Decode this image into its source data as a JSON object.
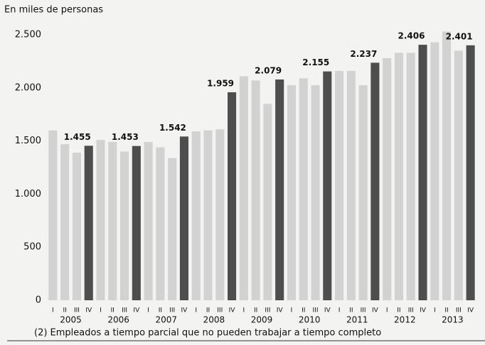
{
  "chart_data": {
    "type": "bar",
    "subtitle": "En miles de personas",
    "footnote": "(2) Empleados a tiempo parcial que no pueden trabajar a tiempo completo",
    "categories": [
      "I",
      "II",
      "III",
      "IV",
      "I",
      "II",
      "III",
      "IV",
      "I",
      "II",
      "III",
      "IV",
      "I",
      "II",
      "III",
      "IV",
      "I",
      "II",
      "III",
      "IV",
      "I",
      "II",
      "III",
      "IV",
      "I",
      "II",
      "III",
      "IV",
      "I",
      "II",
      "III",
      "IV",
      "I",
      "II",
      "III",
      "IV"
    ],
    "years": [
      "2005",
      "2006",
      "2007",
      "2008",
      "2009",
      "2010",
      "2011",
      "2012",
      "2013"
    ],
    "values": [
      1600,
      1470,
      1390,
      1455,
      1510,
      1490,
      1400,
      1453,
      1490,
      1440,
      1340,
      1542,
      1590,
      1600,
      1610,
      1959,
      2110,
      2070,
      1850,
      2079,
      2025,
      2090,
      2025,
      2155,
      2160,
      2160,
      2025,
      2237,
      2280,
      2330,
      2330,
      2406,
      2430,
      2530,
      2350,
      2401
    ],
    "value_labels": [
      null,
      null,
      null,
      "1.455",
      null,
      null,
      null,
      "1.453",
      null,
      null,
      null,
      "1.542",
      null,
      null,
      null,
      "1.959",
      null,
      null,
      null,
      "2.079",
      null,
      null,
      null,
      "2.155",
      null,
      null,
      null,
      "2.237",
      null,
      null,
      null,
      "2.406",
      null,
      null,
      null,
      "2.401"
    ],
    "color": "#d2d2d2",
    "highlight_color": "#4e4e4e",
    "ylim": [
      0,
      2500
    ],
    "yticks": [
      0,
      500,
      {
        "value": 1000,
        "label": "1.000"
      },
      {
        "value": 1500,
        "label": "1.500"
      },
      {
        "value": 2000,
        "label": "2.000"
      },
      {
        "value": 2500,
        "label": "2.500"
      }
    ],
    "grid": false
  }
}
